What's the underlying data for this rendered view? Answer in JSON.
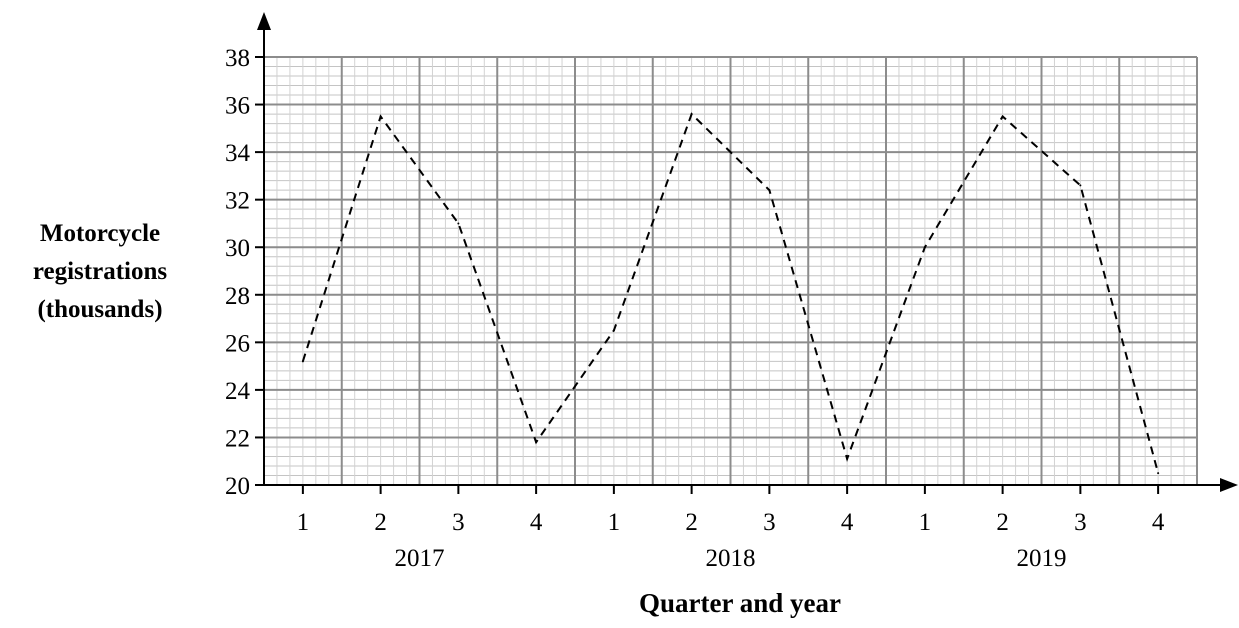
{
  "chart_data": {
    "type": "line",
    "title": "",
    "xlabel": "Quarter and year",
    "ylabel_lines": [
      "Motorcycle",
      "registrations",
      "(thousands)"
    ],
    "ylim": [
      20,
      38
    ],
    "ytick_step": 2,
    "yticks": [
      "20",
      "22",
      "24",
      "26",
      "28",
      "30",
      "32",
      "34",
      "36",
      "38"
    ],
    "quarters": [
      "1",
      "2",
      "3",
      "4",
      "1",
      "2",
      "3",
      "4",
      "1",
      "2",
      "3",
      "4"
    ],
    "years": [
      "2017",
      "2018",
      "2019"
    ],
    "grid": true,
    "line_style": "dashed",
    "series": [
      {
        "values": [
          25.2,
          35.5,
          31.0,
          21.8,
          26.5,
          35.6,
          32.4,
          21.1,
          30.0,
          35.5,
          32.6,
          20.5
        ]
      }
    ]
  }
}
